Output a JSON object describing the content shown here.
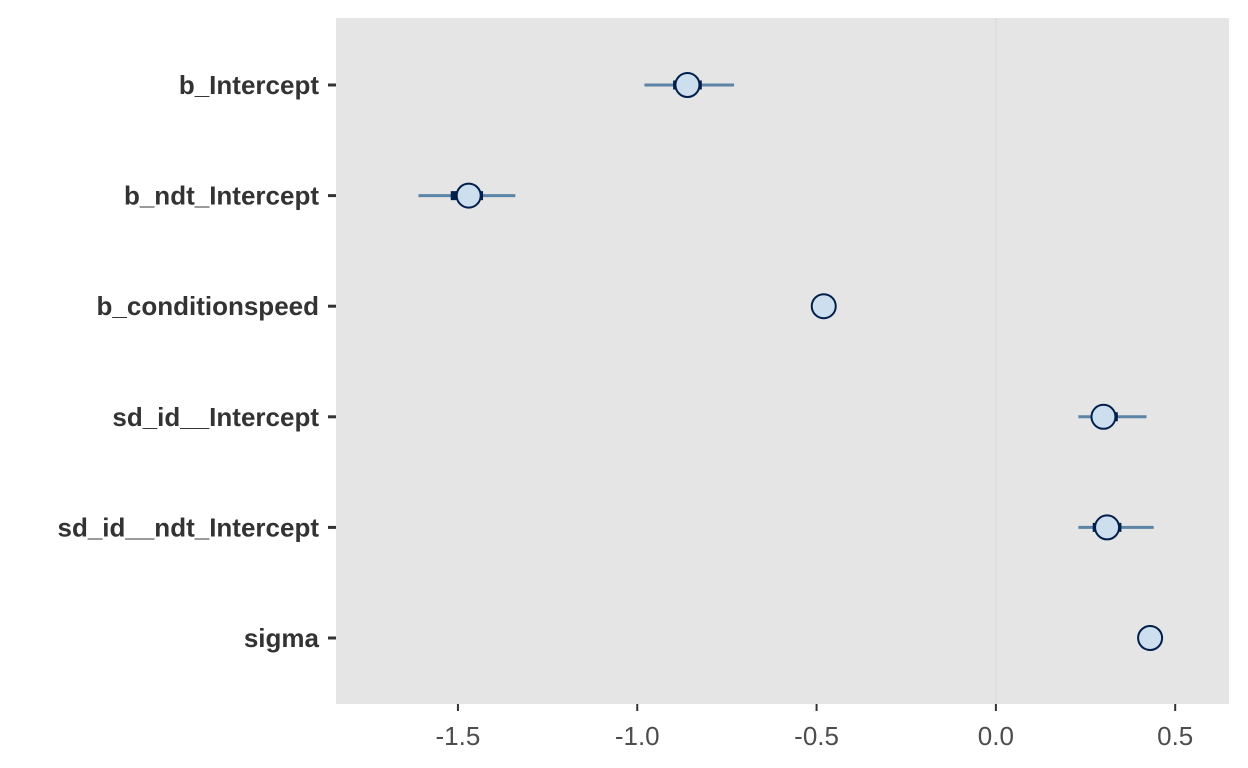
{
  "chart_data": {
    "type": "interval",
    "title": "",
    "xlabel": "",
    "ylabel": "",
    "xlim": [
      -1.84,
      0.65
    ],
    "grid": true,
    "xticks": [
      {
        "value": -1.5,
        "label": "-1.5"
      },
      {
        "value": -1.0,
        "label": "-1.0"
      },
      {
        "value": -0.5,
        "label": "-0.5"
      },
      {
        "value": 0.0,
        "label": "0.0"
      },
      {
        "value": 0.5,
        "label": "0.5"
      }
    ],
    "parameters": [
      {
        "label": "b_Intercept",
        "estimate": -0.86,
        "inner": [
          -0.9,
          -0.82
        ],
        "outer": [
          -0.98,
          -0.73
        ]
      },
      {
        "label": "b_ndt_Intercept",
        "estimate": -1.47,
        "inner": [
          -1.52,
          -1.43
        ],
        "outer": [
          -1.61,
          -1.34
        ]
      },
      {
        "label": "b_conditionspeed",
        "estimate": -0.48,
        "inner": [
          -0.49,
          -0.47
        ],
        "outer": [
          -0.5,
          -0.46
        ]
      },
      {
        "label": "sd_id__Intercept",
        "estimate": 0.3,
        "inner": [
          0.27,
          0.34
        ],
        "outer": [
          0.23,
          0.42
        ]
      },
      {
        "label": "sd_id__ndt_Intercept",
        "estimate": 0.31,
        "inner": [
          0.27,
          0.35
        ],
        "outer": [
          0.23,
          0.44
        ]
      },
      {
        "label": "sigma",
        "estimate": 0.43,
        "inner": [
          0.42,
          0.44
        ],
        "outer": [
          0.41,
          0.45
        ]
      }
    ],
    "colors": {
      "panel": "#e5e5e5",
      "gridline": "#dcdcdc",
      "outer_interval": "#5b84a7",
      "inner_interval": "#011f4b",
      "point_fill": "#cddfee",
      "point_stroke": "#011f4b"
    }
  }
}
